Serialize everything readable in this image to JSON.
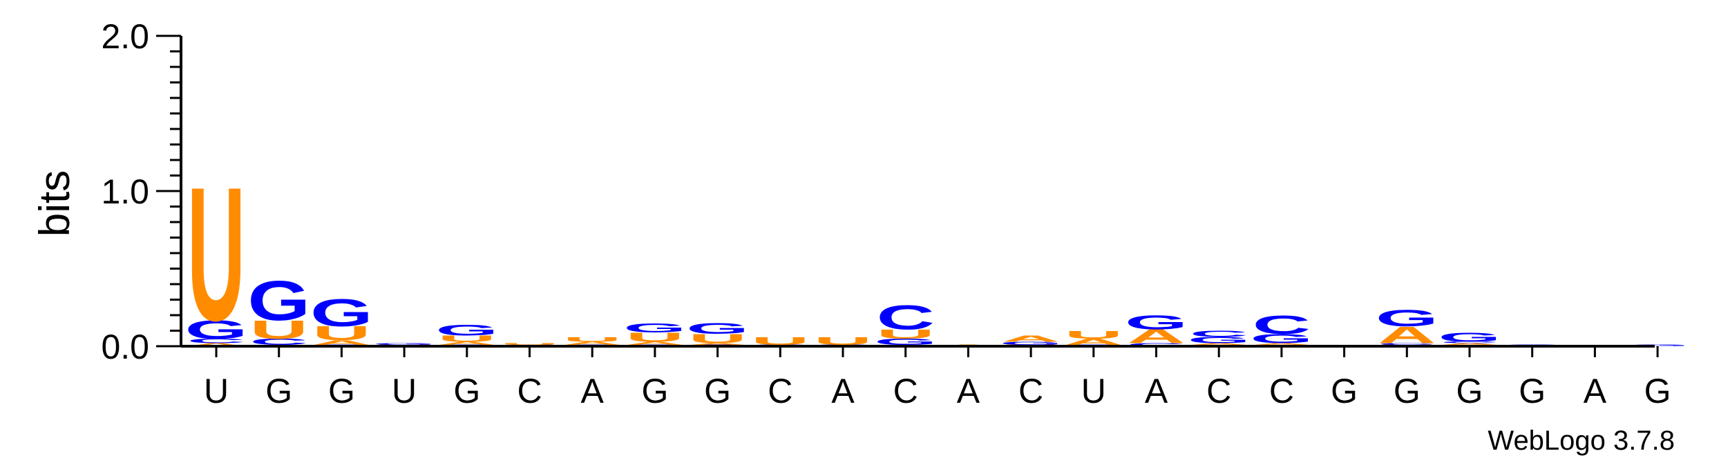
{
  "chart_data": {
    "type": "sequence-logo",
    "ylabel": "bits",
    "ylim": [
      0,
      2.0
    ],
    "yticks": [
      {
        "value": 0.0,
        "label": "0.0"
      },
      {
        "value": 1.0,
        "label": "1.0"
      },
      {
        "value": 2.0,
        "label": "2.0"
      }
    ],
    "yminor_step": 0.1,
    "colors": {
      "U": "#ff8c00",
      "A": "#ff8c00",
      "G": "#0000ff",
      "C": "#0000ff"
    },
    "positions": [
      {
        "label": "U",
        "stack": [
          {
            "letter": "A",
            "bits": 0.02
          },
          {
            "letter": "C",
            "bits": 0.03
          },
          {
            "letter": "G",
            "bits": 0.12
          },
          {
            "letter": "U",
            "bits": 0.88
          }
        ]
      },
      {
        "label": "G",
        "stack": [
          {
            "letter": "A",
            "bits": 0.01
          },
          {
            "letter": "C",
            "bits": 0.04
          },
          {
            "letter": "U",
            "bits": 0.12
          },
          {
            "letter": "G",
            "bits": 0.26
          }
        ]
      },
      {
        "label": "G",
        "stack": [
          {
            "letter": "C",
            "bits": 0.01
          },
          {
            "letter": "A",
            "bits": 0.03
          },
          {
            "letter": "U",
            "bits": 0.09
          },
          {
            "letter": "G",
            "bits": 0.18
          }
        ]
      },
      {
        "label": "U",
        "stack": [
          {
            "letter": "U",
            "bits": 0.01
          },
          {
            "letter": "G",
            "bits": 0.01
          }
        ]
      },
      {
        "label": "G",
        "stack": [
          {
            "letter": "C",
            "bits": 0.01
          },
          {
            "letter": "A",
            "bits": 0.02
          },
          {
            "letter": "U",
            "bits": 0.04
          },
          {
            "letter": "G",
            "bits": 0.07
          }
        ]
      },
      {
        "label": "C",
        "stack": [
          {
            "letter": "C",
            "bits": 0.01
          },
          {
            "letter": "U",
            "bits": 0.01
          }
        ]
      },
      {
        "label": "A",
        "stack": [
          {
            "letter": "G",
            "bits": 0.01
          },
          {
            "letter": "A",
            "bits": 0.02
          },
          {
            "letter": "U",
            "bits": 0.03
          }
        ]
      },
      {
        "label": "G",
        "stack": [
          {
            "letter": "C",
            "bits": 0.01
          },
          {
            "letter": "A",
            "bits": 0.02
          },
          {
            "letter": "U",
            "bits": 0.06
          },
          {
            "letter": "G",
            "bits": 0.06
          }
        ]
      },
      {
        "label": "G",
        "stack": [
          {
            "letter": "C",
            "bits": 0.01
          },
          {
            "letter": "A",
            "bits": 0.01
          },
          {
            "letter": "U",
            "bits": 0.06
          },
          {
            "letter": "G",
            "bits": 0.07
          }
        ]
      },
      {
        "label": "C",
        "stack": [
          {
            "letter": "G",
            "bits": 0.01
          },
          {
            "letter": "U",
            "bits": 0.05
          }
        ]
      },
      {
        "label": "A",
        "stack": [
          {
            "letter": "G",
            "bits": 0.01
          },
          {
            "letter": "U",
            "bits": 0.05
          }
        ]
      },
      {
        "label": "C",
        "stack": [
          {
            "letter": "A",
            "bits": 0.01
          },
          {
            "letter": "G",
            "bits": 0.04
          },
          {
            "letter": "U",
            "bits": 0.06
          },
          {
            "letter": "C",
            "bits": 0.16
          }
        ]
      },
      {
        "label": "A",
        "stack": [
          {
            "letter": "A",
            "bits": 0.01
          }
        ]
      },
      {
        "label": "C",
        "stack": [
          {
            "letter": "U",
            "bits": 0.01
          },
          {
            "letter": "G",
            "bits": 0.02
          },
          {
            "letter": "A",
            "bits": 0.04
          }
        ]
      },
      {
        "label": "U",
        "stack": [
          {
            "letter": "G",
            "bits": 0.01
          },
          {
            "letter": "A",
            "bits": 0.04
          },
          {
            "letter": "U",
            "bits": 0.05
          }
        ]
      },
      {
        "label": "A",
        "stack": [
          {
            "letter": "C",
            "bits": 0.02
          },
          {
            "letter": "A",
            "bits": 0.09
          },
          {
            "letter": "G",
            "bits": 0.09
          }
        ]
      },
      {
        "label": "C",
        "stack": [
          {
            "letter": "U",
            "bits": 0.01
          },
          {
            "letter": "A",
            "bits": 0.01
          },
          {
            "letter": "G",
            "bits": 0.04
          },
          {
            "letter": "C",
            "bits": 0.04
          }
        ]
      },
      {
        "label": "C",
        "stack": [
          {
            "letter": "U",
            "bits": 0.01
          },
          {
            "letter": "A",
            "bits": 0.01
          },
          {
            "letter": "G",
            "bits": 0.06
          },
          {
            "letter": "C",
            "bits": 0.12
          }
        ]
      },
      {
        "label": "G",
        "stack": []
      },
      {
        "label": "G",
        "stack": [
          {
            "letter": "U",
            "bits": 0.01
          },
          {
            "letter": "C",
            "bits": 0.01
          },
          {
            "letter": "A",
            "bits": 0.11
          },
          {
            "letter": "G",
            "bits": 0.11
          }
        ]
      },
      {
        "label": "G",
        "stack": [
          {
            "letter": "U",
            "bits": 0.01
          },
          {
            "letter": "A",
            "bits": 0.01
          },
          {
            "letter": "C",
            "bits": 0.01
          },
          {
            "letter": "G",
            "bits": 0.06
          }
        ]
      },
      {
        "label": "G",
        "stack": [
          {
            "letter": "G",
            "bits": 0.01
          }
        ]
      },
      {
        "label": "A",
        "stack": []
      },
      {
        "label": "G",
        "stack": [
          {
            "letter": "G",
            "bits": 0.01
          }
        ]
      }
    ]
  },
  "credit": "WebLogo 3.7.8"
}
